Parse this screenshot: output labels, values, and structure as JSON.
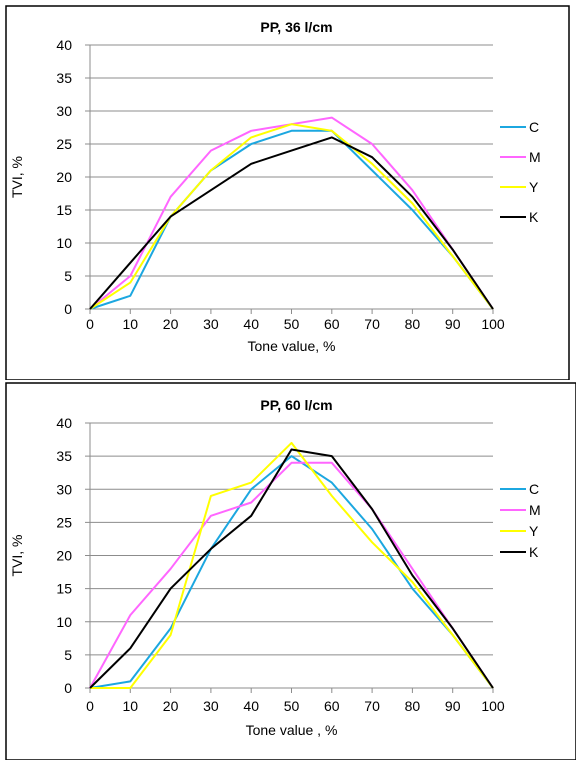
{
  "chart_data": [
    {
      "type": "line",
      "title": "PP, 36 l/cm",
      "xlabel": "Tone value, %",
      "ylabel": "TVI, %",
      "x": [
        0,
        10,
        20,
        30,
        40,
        50,
        60,
        70,
        80,
        90,
        100
      ],
      "xlim": [
        0,
        100
      ],
      "ylim": [
        0,
        40
      ],
      "yticks": [
        0,
        5,
        10,
        15,
        20,
        25,
        30,
        35,
        40
      ],
      "grid": "horizontal",
      "legend": "right",
      "series": [
        {
          "name": "C",
          "color": "#1ca7e0",
          "values": [
            0,
            2,
            14,
            21,
            25,
            27,
            27,
            21,
            15,
            8,
            0
          ]
        },
        {
          "name": "M",
          "color": "#ff66ff",
          "values": [
            0,
            5,
            17,
            24,
            27,
            28,
            29,
            25,
            18,
            9,
            0
          ]
        },
        {
          "name": "Y",
          "color": "#ffff00",
          "values": [
            0,
            4,
            14,
            21,
            26,
            28,
            27,
            22,
            16,
            8,
            0
          ]
        },
        {
          "name": "K",
          "color": "#000000",
          "values": [
            0,
            7,
            14,
            18,
            22,
            24,
            26,
            23,
            17,
            9,
            0
          ]
        }
      ]
    },
    {
      "type": "line",
      "title": "PP, 60 l/cm",
      "xlabel": "Tone value , %",
      "ylabel": "TVI, %",
      "x": [
        0,
        10,
        20,
        30,
        40,
        50,
        60,
        70,
        80,
        90,
        100
      ],
      "xlim": [
        0,
        100
      ],
      "ylim": [
        0,
        40
      ],
      "yticks": [
        0,
        5,
        10,
        15,
        20,
        25,
        30,
        35,
        40
      ],
      "grid": "horizontal",
      "legend": "right",
      "series": [
        {
          "name": "C",
          "color": "#1ca7e0",
          "values": [
            0,
            1,
            9,
            21,
            30,
            35,
            31,
            24,
            15,
            8,
            0
          ]
        },
        {
          "name": "M",
          "color": "#ff66ff",
          "values": [
            0,
            11,
            18,
            26,
            28,
            34,
            34,
            27,
            18,
            9,
            0
          ]
        },
        {
          "name": "Y",
          "color": "#ffff00",
          "values": [
            0,
            0,
            8,
            29,
            31,
            37,
            29,
            22,
            16,
            8,
            0
          ]
        },
        {
          "name": "K",
          "color": "#000000",
          "values": [
            0,
            6,
            15,
            21,
            26,
            36,
            35,
            27,
            17,
            9,
            0
          ]
        }
      ]
    }
  ]
}
